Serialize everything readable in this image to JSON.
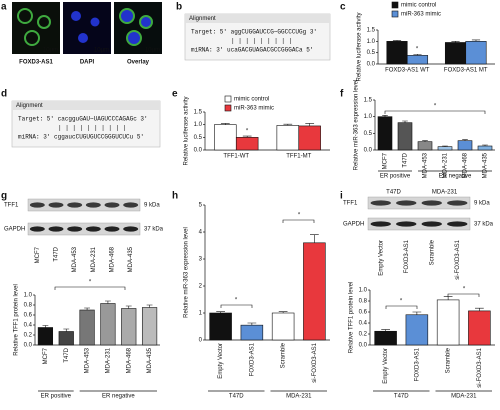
{
  "image_panel": {
    "label": "a",
    "images": [
      "FOXD3-AS1",
      "DAPI",
      "Overlay"
    ],
    "scale_bar": "10μm"
  },
  "alignments": [
    {
      "label": "b",
      "header": "Alignment",
      "target": "Target:  5'  aggCUGGAUCCG~GGCCCUGg  3'",
      "pairs": "| | | |  | | | | |",
      "mirna": "miRNA:  3'  ucaGACGUAGACGCCGGGACa  5'"
    },
    {
      "label": "d",
      "header": "Alignment",
      "target": "Target:  5'  cacgguGAU~UAGUCCCAGAGc  3'",
      "pairs": "| | |    | | | | | | |",
      "mirna": "miRNA:  3'  cggaucCUGUGUCCGGGUCUCu  5'"
    }
  ],
  "blots": [
    {
      "rows": [
        {
          "protein": "TFF1",
          "size": "9 kDa"
        },
        {
          "protein": "GAPDH",
          "size": "37 kDa"
        }
      ],
      "lanes": [
        "MCF7",
        "T47D",
        "MDA-453",
        "MDA-231",
        "MDA-468",
        "MDA-435"
      ]
    },
    {
      "groups": [
        "T47D",
        "MDA-231"
      ],
      "rows": [
        {
          "protein": "TFF1",
          "size": "9 kDa"
        },
        {
          "protein": "GAPDH",
          "size": "37 kDa"
        }
      ],
      "lanes": [
        "Empty Vector",
        "FOXD3-AS1",
        "Scramble",
        "si-FOXD3-AS1"
      ]
    }
  ],
  "chart_data": [
    {
      "type": "bar",
      "label": "c",
      "ylabel": "Relative luciferase activity",
      "categories": [
        "FOXD3-AS1 WT",
        "FOXD3-AS1 MT"
      ],
      "series": [
        {
          "name": "mimic control",
          "color": "#111111",
          "values": [
            1.0,
            0.95
          ],
          "errors": [
            0.04,
            0.05
          ]
        },
        {
          "name": "miR-363 mimic",
          "color": "#5b8fd6",
          "values": [
            0.38,
            1.0
          ],
          "errors": [
            0.05,
            0.06
          ]
        }
      ],
      "ylim": [
        0,
        1.5
      ],
      "yticks": [
        {
          "value": 0,
          "label": "0.0"
        },
        0.5,
        {
          "value": 1,
          "label": "1.0"
        },
        1.5
      ],
      "annotations": [
        "*"
      ]
    },
    {
      "type": "bar",
      "label": "e",
      "ylabel": "Relative luciferase activity",
      "categories": [
        "TFF1-WT",
        "TFF1-MT"
      ],
      "series": [
        {
          "name": "mimic control",
          "color": "#ffffff",
          "values": [
            1.0,
            0.97
          ],
          "errors": [
            0.05,
            0.05
          ]
        },
        {
          "name": "miR-363 mimic",
          "color": "#e8383d",
          "values": [
            0.5,
            0.95
          ],
          "errors": [
            0.05,
            0.1
          ]
        }
      ],
      "ylim": [
        0,
        1.5
      ],
      "yticks": [
        {
          "value": 0,
          "label": "0.0"
        },
        0.5,
        {
          "value": 1,
          "label": "1.0"
        },
        1.5
      ],
      "annotations": [
        "*"
      ]
    },
    {
      "type": "bar",
      "label": "f",
      "ylabel": "Relative miR-363 expression level",
      "categories": [
        "MCF7",
        "T47D",
        "MDA-453",
        "MDA-231",
        "MDA-468",
        "MDA-435"
      ],
      "values": [
        1.0,
        0.82,
        0.25,
        0.1,
        0.28,
        0.12
      ],
      "errors": [
        0.04,
        0.05,
        0.03,
        0.02,
        0.03,
        0.03
      ],
      "colors": [
        "#111111",
        "#555555",
        "#888888",
        "#9ec3e6",
        "#5b8fd6",
        "#7fb0e0"
      ],
      "groups": [
        {
          "label": "ER positive",
          "categories": [
            "MCF7",
            "T47D"
          ]
        },
        {
          "label": "ER negative",
          "categories": [
            "MDA-453",
            "MDA-231",
            "MDA-468",
            "MDA-435"
          ]
        }
      ],
      "ylim": [
        0,
        1.5
      ],
      "yticks": [
        {
          "value": 0,
          "label": "0.0"
        },
        0.5,
        {
          "value": 1,
          "label": "1.0"
        },
        1.5
      ],
      "annotations": [
        "*"
      ]
    },
    {
      "type": "bar",
      "label": "g",
      "ylabel": "Relative TFF1 protein level",
      "categories": [
        "MCF7",
        "T47D",
        "MDA-453",
        "MDA-231",
        "MDA-468",
        "MDA-435"
      ],
      "values": [
        0.35,
        0.27,
        0.7,
        0.83,
        0.73,
        0.75
      ],
      "errors": [
        0.04,
        0.05,
        0.04,
        0.05,
        0.05,
        0.05
      ],
      "colors": [
        "#111111",
        "#444444",
        "#777777",
        "#999999",
        "#aaaaaa",
        "#bbbbbb"
      ],
      "groups": [
        {
          "label": "ER positive",
          "categories": [
            "MCF7",
            "T47D"
          ]
        },
        {
          "label": "ER negative",
          "categories": [
            "MDA-453",
            "MDA-231",
            "MDA-468",
            "MDA-435"
          ]
        }
      ],
      "ylim": [
        0,
        1
      ],
      "yticks": [
        {
          "value": 0,
          "label": "0.0"
        },
        0.2,
        0.4,
        0.6,
        0.8,
        {
          "value": 1,
          "label": "1.0"
        }
      ],
      "annotations": [
        "*"
      ]
    },
    {
      "type": "bar",
      "label": "h",
      "ylabel": "Relative miR-363 expression level",
      "categories": [
        "Empty Vector",
        "FOXD3-AS1",
        "Scramble",
        "si-FOXD3-AS1"
      ],
      "values": [
        1.0,
        0.55,
        1.0,
        3.6
      ],
      "errors": [
        0.05,
        0.08,
        0.05,
        0.3
      ],
      "colors": [
        "#111111",
        "#5b8fd6",
        "#ffffff",
        "#e8383d"
      ],
      "groups": [
        {
          "label": "T47D",
          "categories": [
            "Empty Vector",
            "FOXD3-AS1"
          ]
        },
        {
          "label": "MDA-231",
          "categories": [
            "Scramble",
            "si-FOXD3-AS1"
          ]
        }
      ],
      "ylim": [
        0,
        5
      ],
      "yticks": [
        0,
        1,
        2,
        3,
        4,
        5
      ],
      "annotations": [
        "*",
        "*"
      ]
    },
    {
      "type": "bar",
      "label": "i",
      "ylabel": "Relative TFF1 protein level",
      "categories": [
        "Empty Vector",
        "FOXD3-AS1",
        "Scramble",
        "si-FOXD3-AS1"
      ],
      "values": [
        0.25,
        0.55,
        0.82,
        0.62
      ],
      "errors": [
        0.03,
        0.05,
        0.06,
        0.05
      ],
      "colors": [
        "#111111",
        "#5b8fd6",
        "#ffffff",
        "#e8383d"
      ],
      "groups": [
        {
          "label": "T47D",
          "categories": [
            "Empty Vector",
            "FOXD3-AS1"
          ]
        },
        {
          "label": "MDA-231",
          "categories": [
            "Scramble",
            "si-FOXD3-AS1"
          ]
        }
      ],
      "ylim": [
        0,
        1
      ],
      "yticks": [
        {
          "value": 0,
          "label": "0.0"
        },
        0.2,
        0.4,
        0.6,
        0.8,
        {
          "value": 1,
          "label": "1.0"
        }
      ],
      "annotations": [
        "*",
        "*"
      ]
    }
  ]
}
